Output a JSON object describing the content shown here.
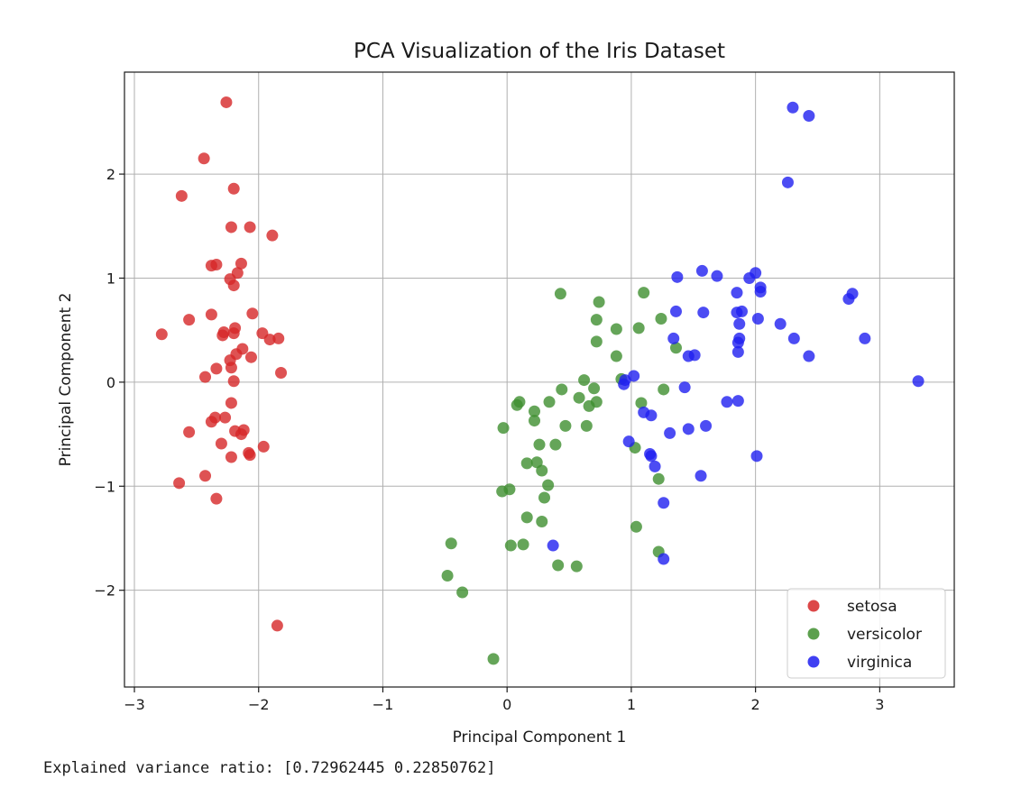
{
  "chart_data": {
    "type": "scatter",
    "title": "PCA Visualization of the Iris Dataset",
    "xlabel": "Principal Component 1",
    "ylabel": "Principal Component 2",
    "xlim": [
      -3.08,
      3.6
    ],
    "ylim": [
      -2.93,
      2.98
    ],
    "xticks": [
      -3,
      -2,
      -1,
      0,
      1,
      2,
      3
    ],
    "xtick_labels": [
      "−3",
      "−2",
      "−1",
      "0",
      "1",
      "2",
      "3"
    ],
    "yticks": [
      -2,
      -1,
      0,
      1,
      2
    ],
    "ytick_labels": [
      "−2",
      "−1",
      "0",
      "1",
      "2"
    ],
    "grid": true,
    "legend_position": "bottom-right",
    "series": [
      {
        "name": "setosa",
        "color": "#d62728",
        "points": [
          [
            -2.26,
            2.69
          ],
          [
            -2.44,
            2.15
          ],
          [
            -2.62,
            1.79
          ],
          [
            -2.2,
            1.86
          ],
          [
            -2.22,
            1.49
          ],
          [
            -2.07,
            1.49
          ],
          [
            -1.89,
            1.41
          ],
          [
            -2.38,
            1.12
          ],
          [
            -2.34,
            1.13
          ],
          [
            -2.14,
            1.14
          ],
          [
            -2.17,
            1.05
          ],
          [
            -2.23,
            0.99
          ],
          [
            -2.2,
            0.93
          ],
          [
            -2.05,
            0.66
          ],
          [
            -2.38,
            0.65
          ],
          [
            -2.56,
            0.6
          ],
          [
            -2.19,
            0.52
          ],
          [
            -2.28,
            0.48
          ],
          [
            -2.29,
            0.45
          ],
          [
            -2.2,
            0.47
          ],
          [
            -1.97,
            0.47
          ],
          [
            -2.78,
            0.46
          ],
          [
            -1.91,
            0.41
          ],
          [
            -1.84,
            0.42
          ],
          [
            -2.13,
            0.32
          ],
          [
            -2.18,
            0.27
          ],
          [
            -2.06,
            0.24
          ],
          [
            -2.23,
            0.21
          ],
          [
            -2.34,
            0.13
          ],
          [
            -2.22,
            0.14
          ],
          [
            -1.82,
            0.09
          ],
          [
            -2.43,
            0.05
          ],
          [
            -2.2,
            0.01
          ],
          [
            -2.22,
            -0.2
          ],
          [
            -2.35,
            -0.34
          ],
          [
            -2.27,
            -0.34
          ],
          [
            -2.38,
            -0.38
          ],
          [
            -2.12,
            -0.46
          ],
          [
            -2.19,
            -0.47
          ],
          [
            -2.14,
            -0.5
          ],
          [
            -2.56,
            -0.48
          ],
          [
            -2.3,
            -0.59
          ],
          [
            -1.96,
            -0.62
          ],
          [
            -2.08,
            -0.68
          ],
          [
            -2.07,
            -0.7
          ],
          [
            -2.22,
            -0.72
          ],
          [
            -2.43,
            -0.9
          ],
          [
            -2.64,
            -0.97
          ],
          [
            -2.34,
            -1.12
          ],
          [
            -1.85,
            -2.34
          ]
        ]
      },
      {
        "name": "versicolor",
        "color": "#3f8f2f",
        "points": [
          [
            0.43,
            0.85
          ],
          [
            1.1,
            0.86
          ],
          [
            0.74,
            0.77
          ],
          [
            0.72,
            0.6
          ],
          [
            1.24,
            0.61
          ],
          [
            0.88,
            0.51
          ],
          [
            1.06,
            0.52
          ],
          [
            0.72,
            0.39
          ],
          [
            1.36,
            0.33
          ],
          [
            0.88,
            0.25
          ],
          [
            0.92,
            0.03
          ],
          [
            0.62,
            0.02
          ],
          [
            0.44,
            -0.07
          ],
          [
            0.7,
            -0.06
          ],
          [
            1.26,
            -0.07
          ],
          [
            0.58,
            -0.15
          ],
          [
            0.34,
            -0.19
          ],
          [
            0.1,
            -0.19
          ],
          [
            0.72,
            -0.19
          ],
          [
            0.66,
            -0.23
          ],
          [
            0.08,
            -0.22
          ],
          [
            1.08,
            -0.2
          ],
          [
            0.22,
            -0.28
          ],
          [
            0.22,
            -0.37
          ],
          [
            0.47,
            -0.42
          ],
          [
            0.64,
            -0.42
          ],
          [
            -0.03,
            -0.44
          ],
          [
            0.26,
            -0.6
          ],
          [
            0.39,
            -0.6
          ],
          [
            1.03,
            -0.63
          ],
          [
            0.16,
            -0.78
          ],
          [
            0.24,
            -0.77
          ],
          [
            0.28,
            -0.85
          ],
          [
            1.22,
            -0.93
          ],
          [
            0.33,
            -0.99
          ],
          [
            -0.04,
            -1.05
          ],
          [
            0.02,
            -1.03
          ],
          [
            0.3,
            -1.11
          ],
          [
            0.16,
            -1.3
          ],
          [
            0.28,
            -1.34
          ],
          [
            1.04,
            -1.39
          ],
          [
            -0.45,
            -1.55
          ],
          [
            0.03,
            -1.57
          ],
          [
            0.13,
            -1.56
          ],
          [
            1.22,
            -1.63
          ],
          [
            0.41,
            -1.76
          ],
          [
            0.56,
            -1.77
          ],
          [
            -0.48,
            -1.86
          ],
          [
            -0.36,
            -2.02
          ],
          [
            -0.11,
            -2.66
          ]
        ]
      },
      {
        "name": "virginica",
        "color": "#1f1ff0",
        "points": [
          [
            2.3,
            2.64
          ],
          [
            2.43,
            2.56
          ],
          [
            2.26,
            1.92
          ],
          [
            1.57,
            1.07
          ],
          [
            1.37,
            1.01
          ],
          [
            1.69,
            1.02
          ],
          [
            1.95,
            1.0
          ],
          [
            2.0,
            1.05
          ],
          [
            2.04,
            0.91
          ],
          [
            2.04,
            0.87
          ],
          [
            1.85,
            0.86
          ],
          [
            2.78,
            0.85
          ],
          [
            2.75,
            0.8
          ],
          [
            1.36,
            0.68
          ],
          [
            1.58,
            0.67
          ],
          [
            1.85,
            0.67
          ],
          [
            1.89,
            0.68
          ],
          [
            2.02,
            0.61
          ],
          [
            1.87,
            0.56
          ],
          [
            2.2,
            0.56
          ],
          [
            1.34,
            0.42
          ],
          [
            1.87,
            0.42
          ],
          [
            2.31,
            0.42
          ],
          [
            2.88,
            0.42
          ],
          [
            1.86,
            0.38
          ],
          [
            1.86,
            0.29
          ],
          [
            1.46,
            0.25
          ],
          [
            1.51,
            0.26
          ],
          [
            2.43,
            0.25
          ],
          [
            1.02,
            0.06
          ],
          [
            0.95,
            0.02
          ],
          [
            0.94,
            -0.02
          ],
          [
            3.31,
            0.01
          ],
          [
            1.43,
            -0.05
          ],
          [
            1.77,
            -0.19
          ],
          [
            1.86,
            -0.18
          ],
          [
            1.1,
            -0.29
          ],
          [
            1.16,
            -0.32
          ],
          [
            1.6,
            -0.42
          ],
          [
            1.46,
            -0.45
          ],
          [
            1.31,
            -0.49
          ],
          [
            0.98,
            -0.57
          ],
          [
            2.01,
            -0.71
          ],
          [
            1.15,
            -0.69
          ],
          [
            1.16,
            -0.71
          ],
          [
            1.19,
            -0.81
          ],
          [
            1.56,
            -0.9
          ],
          [
            1.26,
            -1.16
          ],
          [
            0.37,
            -1.57
          ],
          [
            1.26,
            -1.7
          ]
        ]
      }
    ]
  },
  "output": {
    "text": "Explained variance ratio: [0.72962445 0.22850762]"
  }
}
